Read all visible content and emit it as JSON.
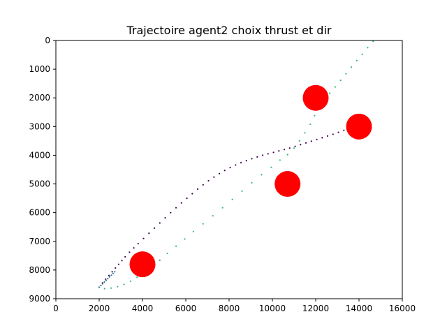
{
  "chart_data": {
    "type": "scatter",
    "title": "Trajectoire agent2 choix thrust et dir",
    "xlabel": "",
    "ylabel": "",
    "xlim": [
      0,
      16000
    ],
    "ylim": [
      9000,
      0
    ],
    "y_inverted": true,
    "grid": false,
    "x_ticks": [
      0,
      2000,
      4000,
      6000,
      8000,
      10000,
      12000,
      14000,
      16000
    ],
    "y_ticks": [
      0,
      1000,
      2000,
      3000,
      4000,
      5000,
      6000,
      7000,
      8000,
      9000
    ],
    "checkpoints": {
      "color": "#ff0000",
      "radius_data": 600,
      "points": [
        {
          "x": 4000,
          "y": 7800
        },
        {
          "x": 10700,
          "y": 5000
        },
        {
          "x": 12000,
          "y": 2000
        },
        {
          "x": 14000,
          "y": 3000
        }
      ]
    },
    "series": [
      {
        "color": "#440154",
        "points": [
          [
            2000,
            8600
          ],
          [
            2150,
            8450
          ],
          [
            2300,
            8320
          ],
          [
            2450,
            8190
          ],
          [
            2600,
            8060
          ],
          [
            2750,
            7930
          ],
          [
            2900,
            7800
          ],
          [
            3050,
            7670
          ],
          [
            3200,
            7540
          ],
          [
            3400,
            7380
          ],
          [
            3600,
            7230
          ],
          [
            3800,
            7080
          ],
          [
            4050,
            6900
          ],
          [
            4300,
            6720
          ],
          [
            4550,
            6540
          ],
          [
            4800,
            6360
          ],
          [
            5050,
            6180
          ],
          [
            5300,
            6000
          ],
          [
            5550,
            5830
          ],
          [
            5800,
            5660
          ],
          [
            6050,
            5500
          ],
          [
            6300,
            5340
          ],
          [
            6550,
            5180
          ],
          [
            6800,
            5030
          ],
          [
            7050,
            4890
          ],
          [
            7300,
            4760
          ],
          [
            7550,
            4640
          ],
          [
            7800,
            4530
          ],
          [
            8050,
            4430
          ],
          [
            8300,
            4340
          ],
          [
            8550,
            4260
          ],
          [
            8800,
            4190
          ],
          [
            9050,
            4120
          ],
          [
            9300,
            4060
          ],
          [
            9550,
            4000
          ],
          [
            9800,
            3950
          ],
          [
            10050,
            3900
          ],
          [
            10300,
            3850
          ],
          [
            10550,
            3800
          ],
          [
            10800,
            3750
          ],
          [
            11050,
            3690
          ],
          [
            11300,
            3630
          ],
          [
            11550,
            3570
          ],
          [
            11800,
            3510
          ],
          [
            12050,
            3450
          ],
          [
            12300,
            3390
          ],
          [
            12550,
            3330
          ],
          [
            12800,
            3270
          ],
          [
            13050,
            3200
          ],
          [
            13300,
            3130
          ]
        ]
      },
      {
        "color": "#35b779",
        "points": [
          [
            2000,
            8600
          ],
          [
            2250,
            8650
          ],
          [
            2550,
            8630
          ],
          [
            2850,
            8580
          ],
          [
            3150,
            8500
          ],
          [
            3450,
            8390
          ],
          [
            3750,
            8250
          ],
          [
            4100,
            8080
          ],
          [
            4450,
            7880
          ],
          [
            4800,
            7660
          ],
          [
            5150,
            7420
          ],
          [
            5550,
            7170
          ],
          [
            5950,
            6920
          ],
          [
            6350,
            6660
          ],
          [
            6800,
            6390
          ],
          [
            7250,
            6110
          ],
          [
            7700,
            5830
          ],
          [
            8150,
            5540
          ],
          [
            8600,
            5250
          ],
          [
            9050,
            4960
          ],
          [
            9500,
            4680
          ],
          [
            9950,
            4420
          ],
          [
            10350,
            4170
          ],
          [
            10700,
            3980
          ],
          [
            11000,
            3750
          ],
          [
            11250,
            3500
          ],
          [
            11500,
            3220
          ],
          [
            11750,
            2920
          ],
          [
            11950,
            2620
          ],
          [
            12150,
            2330
          ],
          [
            12400,
            2080
          ],
          [
            12650,
            1840
          ],
          [
            12900,
            1620
          ],
          [
            13150,
            1390
          ],
          [
            13400,
            1160
          ],
          [
            13650,
            930
          ],
          [
            13900,
            700
          ],
          [
            14150,
            480
          ],
          [
            14400,
            250
          ],
          [
            14650,
            30
          ]
        ]
      },
      {
        "color": "#2c728e",
        "points": [
          [
            2000,
            8600
          ],
          [
            2080,
            8540
          ],
          [
            2160,
            8480
          ],
          [
            2240,
            8420
          ],
          [
            2320,
            8360
          ],
          [
            2400,
            8300
          ],
          [
            2480,
            8240
          ],
          [
            2560,
            8180
          ],
          [
            2640,
            8120
          ],
          [
            2720,
            8060
          ]
        ]
      }
    ]
  }
}
